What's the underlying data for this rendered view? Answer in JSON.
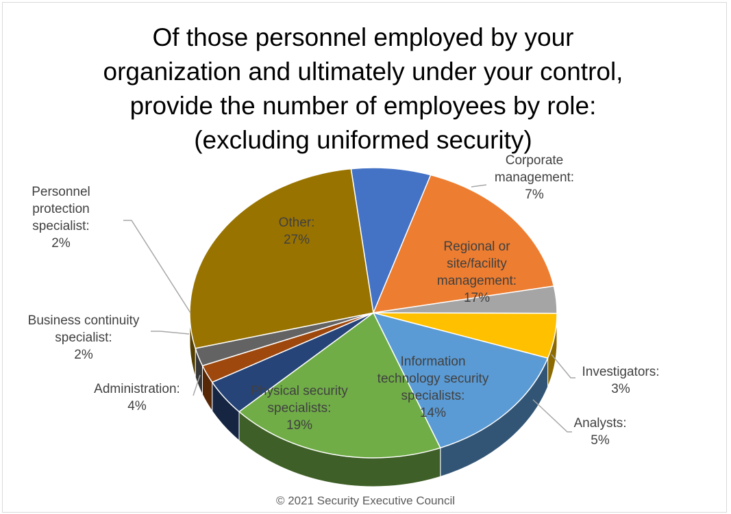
{
  "title": {
    "lines": [
      "Of those personnel employed by your",
      "organization and ultimately under your control,",
      "provide the number of employees by role:",
      "(excluding uniformed security)"
    ]
  },
  "footer": "© 2021 Security Executive Council",
  "chart_data": {
    "type": "pie",
    "title": "Of those personnel employed by your organization and ultimately under your control, provide the number of employees by role: (excluding uniformed security)",
    "slices": [
      {
        "label_lines": [
          "Corporate",
          "management:",
          "7%"
        ],
        "value": 7,
        "color": "#4472c4"
      },
      {
        "label_lines": [
          "Regional or",
          "site/facility",
          "management:",
          "17%"
        ],
        "value": 17,
        "color": "#ed7d31"
      },
      {
        "label_lines": [
          "Investigators:",
          "3%"
        ],
        "value": 3,
        "color": "#a5a5a5"
      },
      {
        "label_lines": [
          "Analysts:",
          "5%"
        ],
        "value": 5,
        "color": "#ffc000"
      },
      {
        "label_lines": [
          "Information",
          "technology security",
          "specialists:",
          "14%"
        ],
        "value": 14,
        "color": "#5b9bd5"
      },
      {
        "label_lines": [
          "Physical security",
          "specialists:",
          "19%"
        ],
        "value": 19,
        "color": "#70ad47"
      },
      {
        "label_lines": [
          "Administration:",
          "4%"
        ],
        "value": 4,
        "color": "#264478"
      },
      {
        "label_lines": [
          "Business continuity",
          "specialist:",
          "2%"
        ],
        "value": 2,
        "color": "#9e480e"
      },
      {
        "label_lines": [
          "Personnel",
          "protection",
          "specialist:",
          "2%"
        ],
        "value": 2,
        "color": "#636363"
      },
      {
        "label_lines": [
          "Other:",
          "27%"
        ],
        "value": 27,
        "color": "#997300"
      }
    ],
    "legend": "none",
    "data_labels": "outside with leader lines; some inside"
  }
}
